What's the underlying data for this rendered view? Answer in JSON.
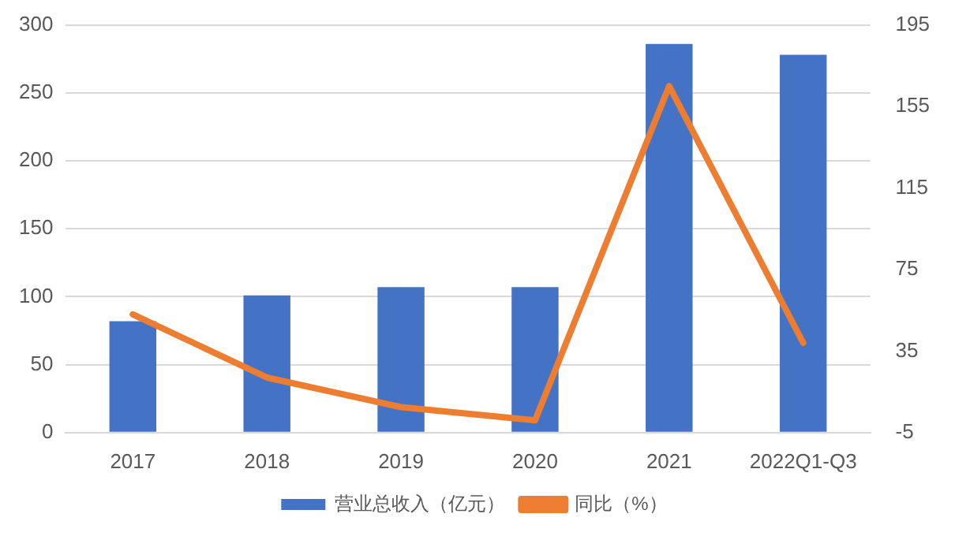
{
  "chart_data": {
    "type": "bar",
    "categories": [
      "2017",
      "2018",
      "2019",
      "2020",
      "2021",
      "2022Q1-Q3"
    ],
    "series": [
      {
        "name": "营业总收入（亿元）",
        "color": "#4472c4",
        "values": [
          82,
          101,
          107,
          107,
          286,
          278
        ]
      },
      {
        "name": "同比（%）",
        "type": "line",
        "axis": "y2",
        "color": "#ed7d31",
        "values": [
          53,
          22,
          7.5,
          1,
          165,
          39
        ]
      }
    ],
    "ylim": [
      0,
      300
    ],
    "yticks": [
      0,
      50,
      100,
      150,
      200,
      250,
      300
    ],
    "y2lim": [
      -5,
      195
    ],
    "y2ticks": [
      -5,
      35,
      75,
      115,
      155,
      195
    ],
    "grid": "y",
    "legend": "bottom",
    "marker": "none",
    "line_style": "solid"
  }
}
